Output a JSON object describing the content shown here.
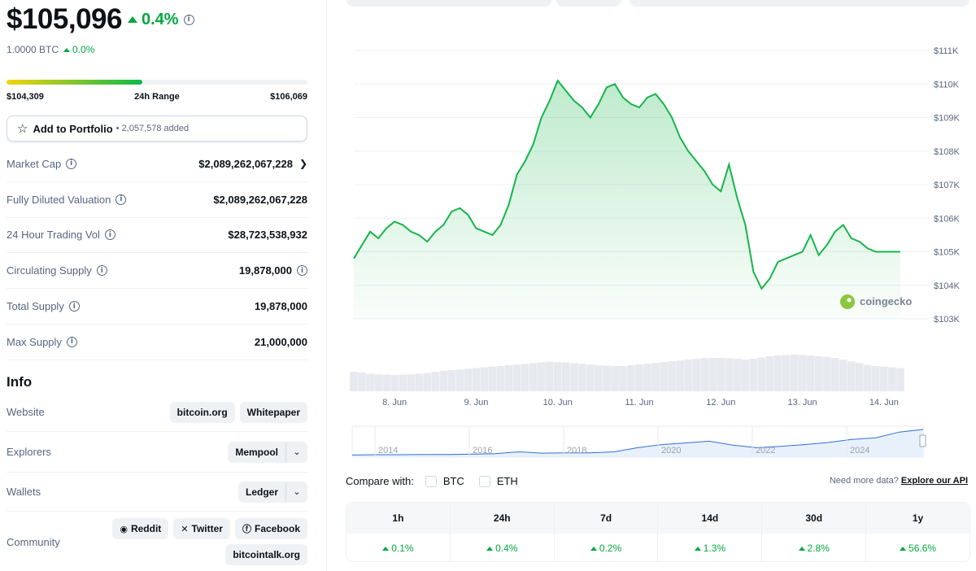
{
  "coin": {
    "price": "$105,096",
    "price_change": "0.4%",
    "btc_value": "1.0000 BTC",
    "btc_change": "0.0%"
  },
  "range": {
    "low": "$104,309",
    "label": "24h Range",
    "high": "$106,069",
    "position_fraction": 0.45
  },
  "portfolio": {
    "label": "Add to Portfolio",
    "count": "• 2,057,578 added"
  },
  "stats": [
    {
      "label": "Market Cap",
      "value": "$2,089,262,067,228"
    },
    {
      "label": "Fully Diluted Valuation",
      "value": "$2,089,262,067,228"
    },
    {
      "label": "24 Hour Trading Vol",
      "value": "$28,723,538,932"
    },
    {
      "label": "Circulating Supply",
      "value": "19,878,000"
    },
    {
      "label": "Total Supply",
      "value": "19,878,000"
    },
    {
      "label": "Max Supply",
      "value": "21,000,000"
    }
  ],
  "info": {
    "heading": "Info",
    "website_label": "Website",
    "website_links": [
      "bitcoin.org",
      "Whitepaper"
    ],
    "explorers_label": "Explorers",
    "explorer": "Mempool",
    "wallets_label": "Wallets",
    "wallet": "Ledger",
    "community_label": "Community",
    "community_links": [
      "Reddit",
      "Twitter",
      "Facebook",
      "bitcointalk.org"
    ]
  },
  "colors": {
    "up": "#00a83e",
    "line": "#16b54a",
    "muted": "#58667e"
  },
  "icons": [
    "info-icon",
    "triangle-up-icon",
    "star-icon",
    "chevron-down-icon",
    "reddit-icon",
    "x-icon",
    "facebook-icon"
  ],
  "watermark": "coingecko",
  "chart_data": {
    "type": "area",
    "title": "",
    "ylabel": "",
    "xlabel": "",
    "y_ticks": [
      "$111K",
      "$110K",
      "$109K",
      "$108K",
      "$107K",
      "$106K",
      "$105K",
      "$104K",
      "$103K"
    ],
    "ylim": [
      103000,
      111000
    ],
    "x_ticks": [
      "8. Jun",
      "9. Jun",
      "10. Jun",
      "11. Jun",
      "12. Jun",
      "13. Jun",
      "14. Jun"
    ],
    "x": [
      0,
      0.1,
      0.2,
      0.3,
      0.4,
      0.5,
      0.6,
      0.7,
      0.8,
      0.9,
      1.0,
      1.1,
      1.2,
      1.3,
      1.4,
      1.5,
      1.6,
      1.7,
      1.8,
      1.9,
      2.0,
      2.1,
      2.2,
      2.3,
      2.4,
      2.5,
      2.6,
      2.7,
      2.8,
      2.9,
      3.0,
      3.1,
      3.2,
      3.3,
      3.4,
      3.5,
      3.6,
      3.7,
      3.8,
      3.9,
      4.0,
      4.1,
      4.2,
      4.3,
      4.4,
      4.5,
      4.6,
      4.7,
      4.8,
      4.9,
      5.0,
      5.1,
      5.2,
      5.3,
      5.4,
      5.5,
      5.6,
      5.7,
      5.8,
      5.9,
      6.0,
      6.1,
      6.2,
      6.3,
      6.4,
      6.5,
      6.6,
      6.7
    ],
    "values": [
      104800,
      105200,
      105600,
      105400,
      105700,
      105900,
      105800,
      105600,
      105500,
      105300,
      105600,
      105800,
      106200,
      106300,
      106100,
      105700,
      105600,
      105500,
      105800,
      106400,
      107300,
      107700,
      108200,
      109000,
      109500,
      110100,
      109800,
      109500,
      109300,
      109000,
      109400,
      109900,
      110000,
      109600,
      109400,
      109300,
      109600,
      109700,
      109400,
      109000,
      108400,
      108000,
      107700,
      107400,
      107000,
      106800,
      107600,
      106600,
      105800,
      104400,
      103900,
      104200,
      104700,
      104800,
      104900,
      105000,
      105500,
      104900,
      105200,
      105600,
      105800,
      105400,
      105300,
      105100,
      105000,
      105000,
      105000,
      105000
    ],
    "volume_relative": [
      0.55,
      0.53,
      0.5,
      0.48,
      0.47,
      0.46,
      0.47,
      0.48,
      0.5,
      0.52,
      0.55,
      0.58,
      0.6,
      0.62,
      0.64,
      0.66,
      0.68,
      0.7,
      0.72,
      0.74,
      0.76,
      0.78,
      0.8,
      0.82,
      0.84,
      0.83,
      0.82,
      0.8,
      0.78,
      0.76,
      0.74,
      0.73,
      0.72,
      0.72,
      0.74,
      0.76,
      0.78,
      0.8,
      0.83,
      0.86,
      0.88,
      0.9,
      0.92,
      0.94,
      0.95,
      0.95,
      0.94,
      0.92,
      0.9,
      0.92,
      0.96,
      1.0,
      1.02,
      1.03,
      1.04,
      1.03,
      1.02,
      1.0,
      0.98,
      0.95,
      0.9,
      0.85,
      0.8,
      0.75,
      0.72,
      0.7,
      0.68,
      0.66
    ],
    "navigator": {
      "x_ticks": [
        "2014",
        "2016",
        "2018",
        "2020",
        "2022",
        "2024"
      ],
      "values": [
        0.02,
        0.03,
        0.03,
        0.04,
        0.04,
        0.05,
        0.07,
        0.14,
        0.09,
        0.1,
        0.1,
        0.14,
        0.3,
        0.42,
        0.48,
        0.55,
        0.4,
        0.3,
        0.35,
        0.42,
        0.5,
        0.62,
        0.68,
        0.9,
        1.0
      ]
    },
    "compare": {
      "label": "Compare with:",
      "options": [
        "BTC",
        "ETH"
      ]
    },
    "api": {
      "note": "Need more data?",
      "link": "Explore our API"
    }
  },
  "performance": {
    "periods": [
      "1h",
      "24h",
      "7d",
      "14d",
      "30d",
      "1y"
    ],
    "changes": [
      "0.1%",
      "0.4%",
      "0.2%",
      "1.3%",
      "2.8%",
      "56.6%"
    ]
  }
}
